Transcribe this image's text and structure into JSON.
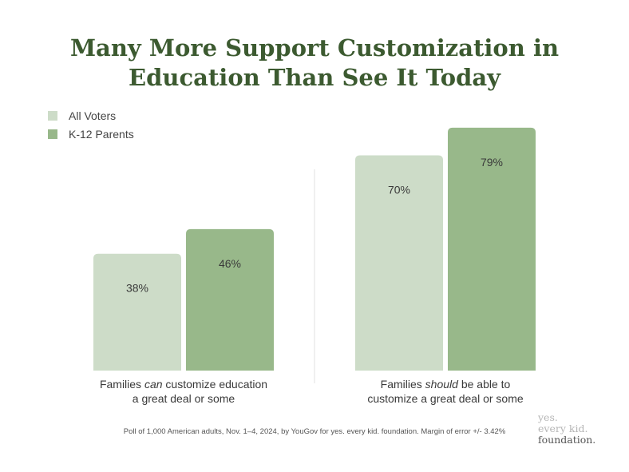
{
  "title_lines": [
    "Many More Support Customization in",
    "Education Than See It Today"
  ],
  "legend": [
    {
      "label": "All Voters",
      "color": "#cddcc8"
    },
    {
      "label": "K-12 Parents",
      "color": "#98b88a"
    }
  ],
  "chart_data": {
    "type": "bar",
    "title": "Many More Support Customization in Education Than See It Today",
    "categories": [
      [
        "Families can customize education",
        "a great deal or some"
      ],
      [
        "Families should be able to",
        "customize a great deal or some"
      ]
    ],
    "series": [
      {
        "name": "All Voters",
        "values": [
          38,
          70
        ],
        "labels": [
          "38%",
          "70%"
        ],
        "color": "#cddcc8"
      },
      {
        "name": "K-12 Parents",
        "values": [
          46,
          79
        ],
        "labels": [
          "46%",
          "79%"
        ],
        "color": "#98b88a"
      }
    ],
    "ylim": [
      0,
      100
    ],
    "grid": false,
    "legend_position": "top-left"
  },
  "footnote": "Poll of 1,000 American adults, Nov. 1–4, 2024, by YouGov for yes. every kid. foundation. Margin of error +/- 3.42%",
  "brand_lines": [
    "yes.",
    "every kid.",
    "foundation."
  ]
}
